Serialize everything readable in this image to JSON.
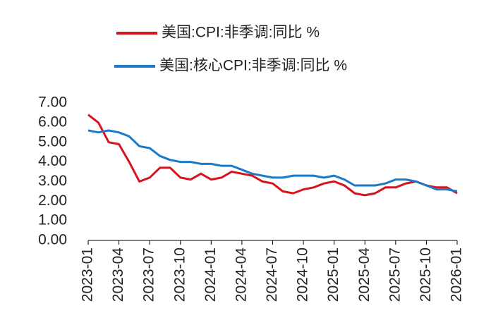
{
  "chart_data": {
    "type": "line",
    "categories": [
      "2023-01",
      null,
      null,
      "2023-04",
      null,
      null,
      "2023-07",
      null,
      null,
      "2023-10",
      null,
      null,
      "2024-01",
      null,
      null,
      "2024-04",
      null,
      null,
      "2024-07",
      null,
      null,
      "2024-10",
      null,
      null,
      "2025-01",
      null,
      null,
      "2025-04",
      null,
      null,
      "2025-07",
      null,
      null,
      "2025-10",
      null,
      null,
      "2026-01"
    ],
    "series": [
      {
        "name": "美国:CPI:非季调:同比 %",
        "color": "#d7141e",
        "values": [
          6.4,
          6.0,
          5.0,
          4.9,
          4.0,
          3.0,
          3.2,
          3.7,
          3.7,
          3.2,
          3.1,
          3.4,
          3.1,
          3.2,
          3.5,
          3.4,
          3.3,
          3.0,
          2.9,
          2.5,
          2.4,
          2.6,
          2.7,
          2.9,
          3.0,
          2.8,
          2.4,
          2.3,
          2.4,
          2.7,
          2.7,
          2.9,
          3.0,
          2.8,
          2.7,
          2.7,
          2.4
        ]
      },
      {
        "name": "美国:核心CPI:非季调:同比 %",
        "color": "#1a7ac7",
        "values": [
          5.6,
          5.5,
          5.6,
          5.5,
          5.3,
          4.8,
          4.7,
          4.3,
          4.1,
          4.0,
          4.0,
          3.9,
          3.9,
          3.8,
          3.8,
          3.6,
          3.4,
          3.3,
          3.2,
          3.2,
          3.3,
          3.3,
          3.3,
          3.2,
          3.3,
          3.1,
          2.8,
          2.8,
          2.8,
          2.9,
          3.1,
          3.1,
          3.0,
          2.8,
          2.6,
          2.6,
          2.5
        ]
      }
    ],
    "ylim": [
      0,
      7
    ],
    "yticks": [
      {
        "value": 0,
        "label": "0.00"
      },
      {
        "value": 1,
        "label": "1.00"
      },
      {
        "value": 2,
        "label": "2.00"
      },
      {
        "value": 3,
        "label": "3.00"
      },
      {
        "value": 4,
        "label": "4.00"
      },
      {
        "value": 5,
        "label": "5.00"
      },
      {
        "value": 6,
        "label": "6.00"
      },
      {
        "value": 7,
        "label": "7.00"
      }
    ],
    "grid": false,
    "legend": "top"
  }
}
